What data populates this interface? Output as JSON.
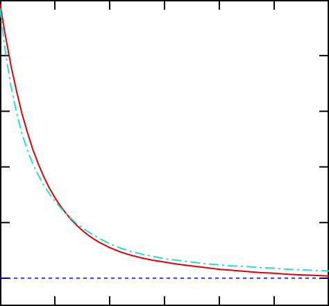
{
  "chart_data": {
    "type": "line",
    "title": "",
    "xlabel": "",
    "ylabel": "",
    "xlim": [
      0,
      6
    ],
    "ylim": [
      -0.5,
      5
    ],
    "x_ticks": [
      1,
      2,
      3,
      4,
      5
    ],
    "y_ticks": [
      0,
      1,
      2,
      3,
      4
    ],
    "grid": false,
    "series": [
      {
        "color": "#e00000",
        "style": "solid",
        "x": [
          0,
          0.1,
          0.2,
          0.3,
          0.4,
          0.5,
          0.6,
          0.7,
          0.8,
          0.9,
          1.0,
          1.1,
          1.2,
          1.3,
          1.4,
          1.5,
          1.6,
          1.7,
          1.8,
          1.9,
          2.0,
          2.2,
          2.4,
          2.6,
          2.8,
          3.0,
          3.25,
          3.5,
          3.75,
          4.0,
          4.25,
          4.5,
          4.75,
          5.0,
          5.25,
          5.5,
          5.75,
          6.0
        ],
        "values": [
          4.93,
          4.35,
          3.82,
          3.37,
          2.96,
          2.62,
          2.31,
          2.05,
          1.82,
          1.62,
          1.45,
          1.3,
          1.17,
          1.05,
          0.95,
          0.86,
          0.78,
          0.71,
          0.65,
          0.6,
          0.55,
          0.47,
          0.41,
          0.36,
          0.32,
          0.29,
          0.25,
          0.22,
          0.19,
          0.16,
          0.14,
          0.12,
          0.1,
          0.09,
          0.07,
          0.06,
          0.05,
          0.04
        ]
      },
      {
        "color": "#22dddd",
        "style": "dashdot",
        "x": [
          0,
          0.1,
          0.2,
          0.3,
          0.4,
          0.5,
          0.6,
          0.7,
          0.8,
          0.9,
          1.0,
          1.1,
          1.2,
          1.3,
          1.4,
          1.5,
          1.6,
          1.7,
          1.8,
          1.9,
          2.0,
          2.2,
          2.4,
          2.6,
          2.8,
          3.0,
          3.25,
          3.5,
          3.75,
          4.0,
          4.25,
          4.5,
          4.75,
          5.0,
          5.25,
          5.5,
          5.75,
          6.0
        ],
        "values": [
          4.85,
          4.05,
          3.45,
          2.98,
          2.6,
          2.3,
          2.05,
          1.85,
          1.67,
          1.52,
          1.39,
          1.27,
          1.16,
          1.07,
          0.98,
          0.91,
          0.84,
          0.78,
          0.72,
          0.67,
          0.62,
          0.54,
          0.48,
          0.43,
          0.39,
          0.35,
          0.32,
          0.29,
          0.26,
          0.24,
          0.22,
          0.21,
          0.19,
          0.18,
          0.16,
          0.15,
          0.14,
          0.13
        ]
      },
      {
        "color": "#0000dd",
        "style": "dashed",
        "x": [
          0,
          6
        ],
        "values": [
          0,
          0
        ]
      }
    ]
  }
}
